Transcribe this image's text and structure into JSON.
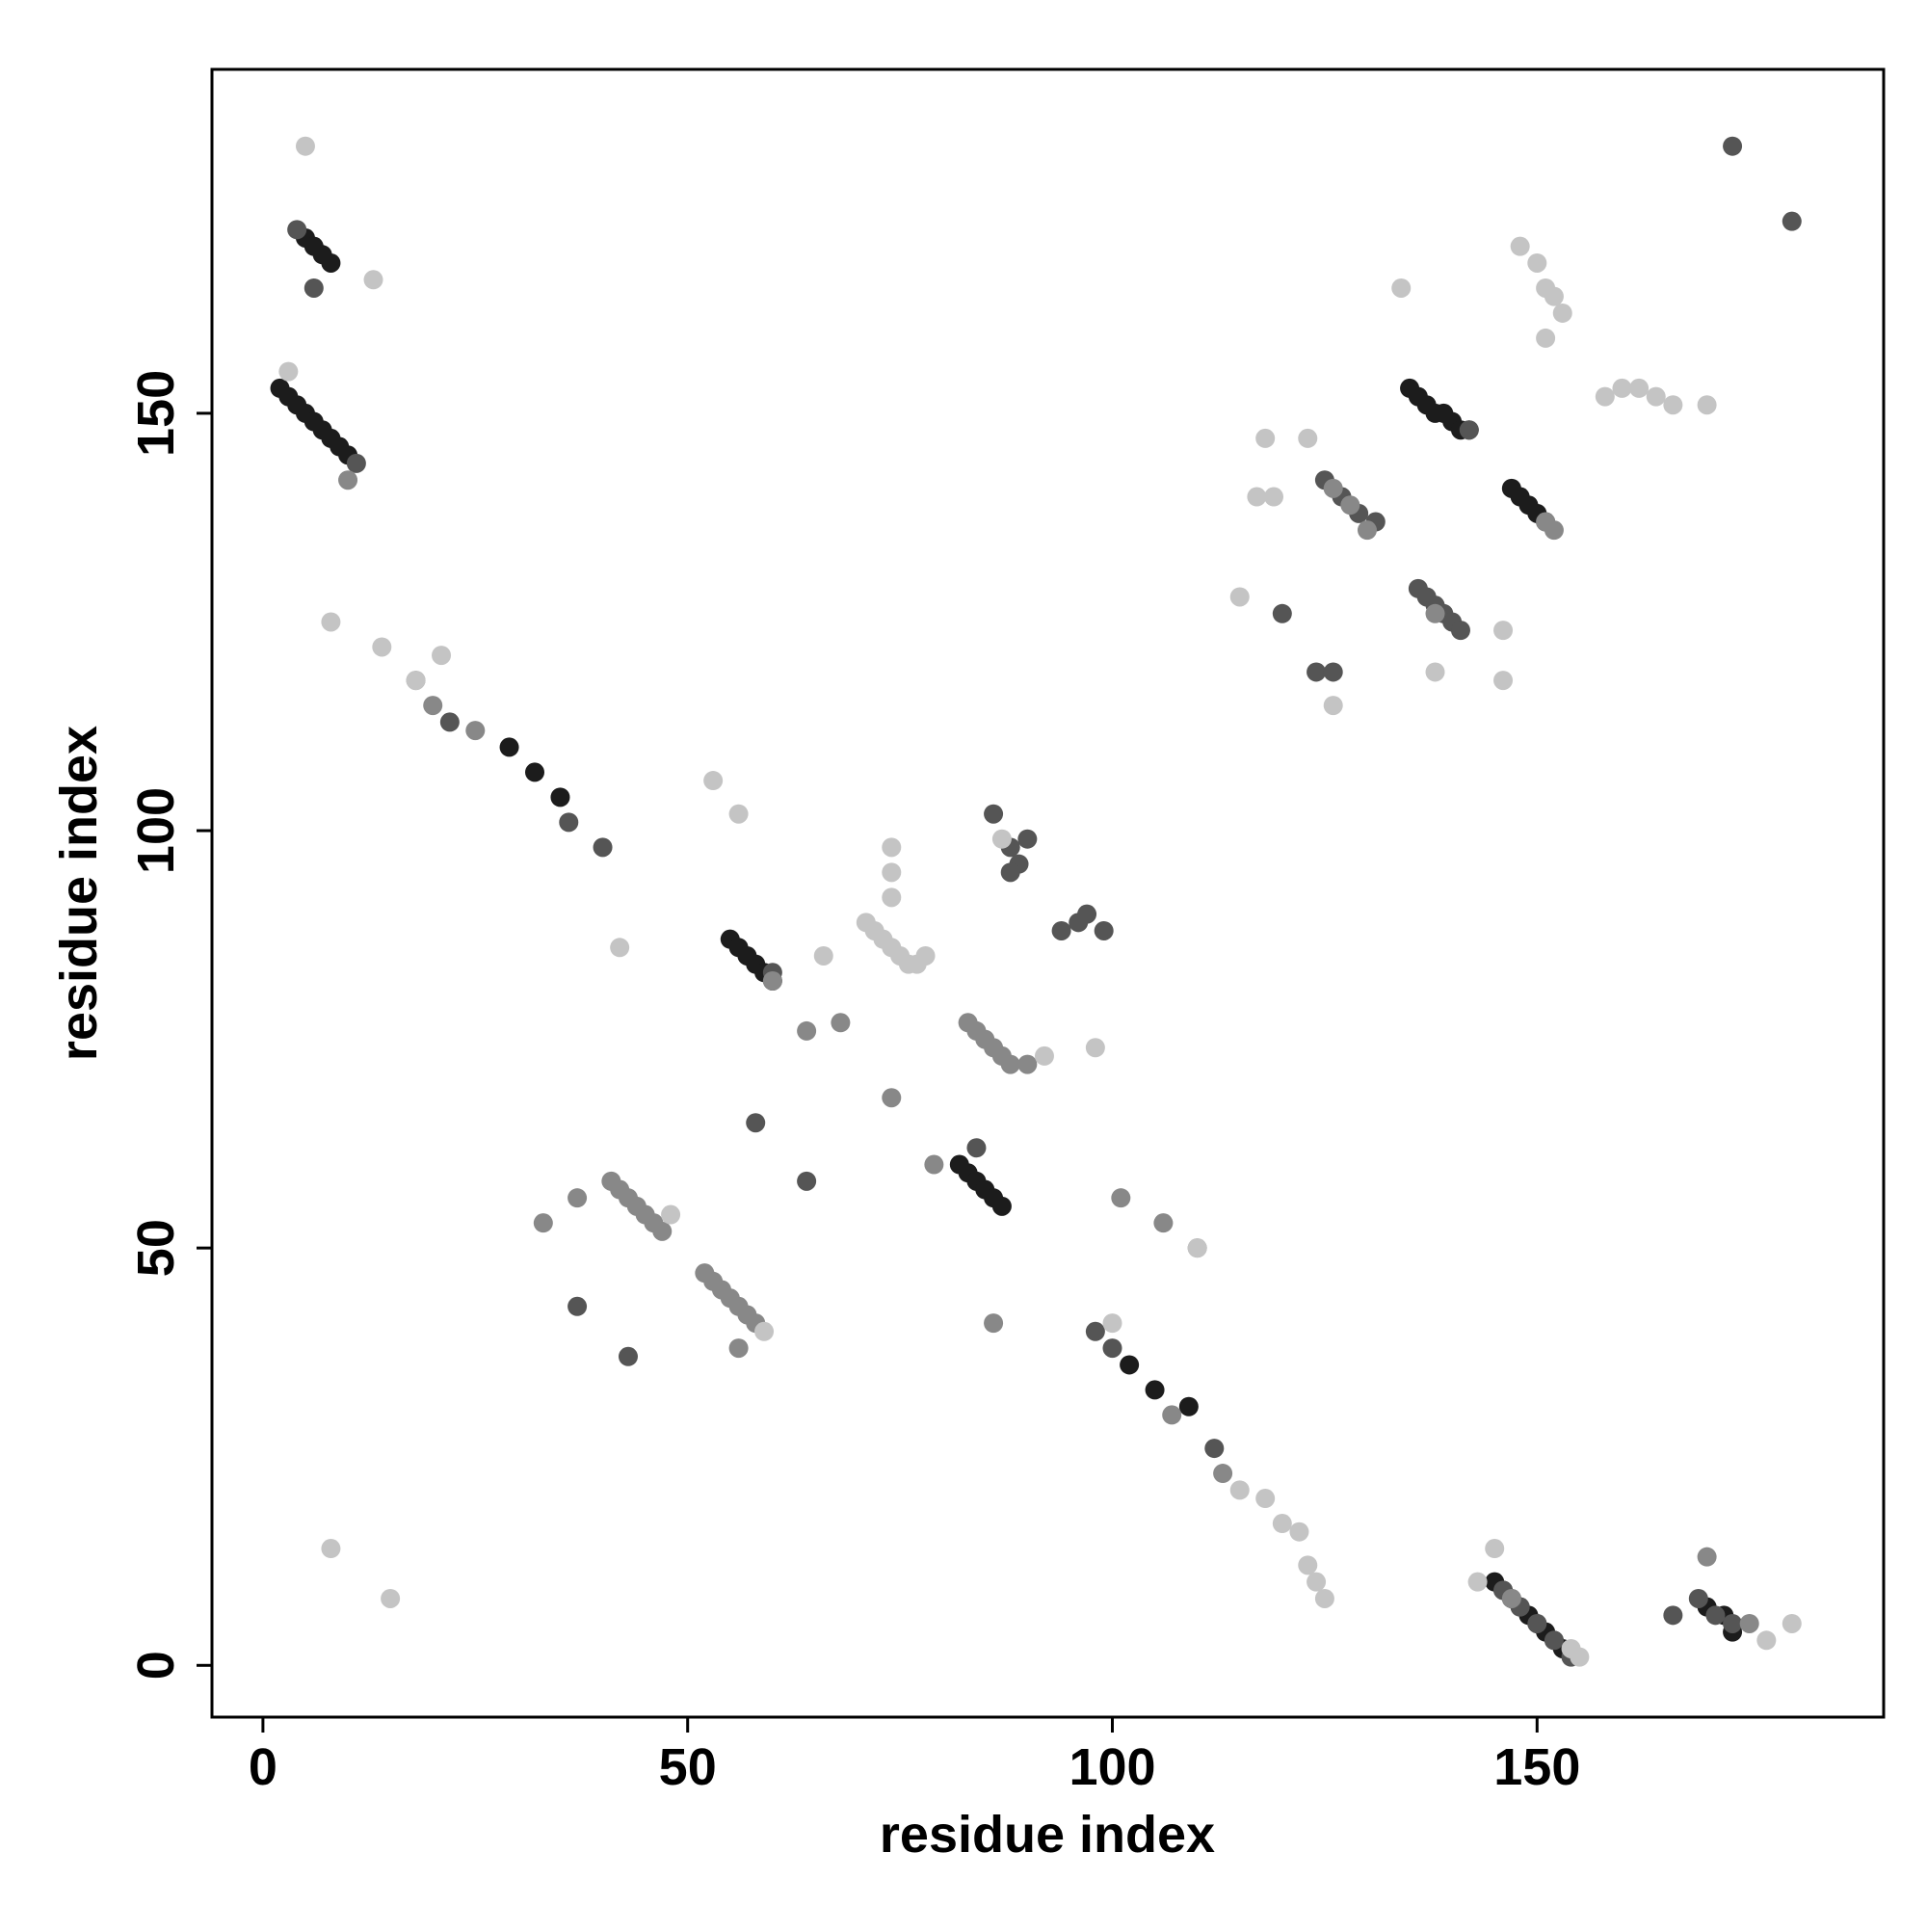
{
  "chart_data": {
    "type": "scatter",
    "xlabel": "residue index",
    "ylabel": "residue index",
    "xlim": [
      -6,
      190.8
    ],
    "ylim": [
      -6.2,
      191.2
    ],
    "xticks": [
      0,
      50,
      100,
      150
    ],
    "yticks": [
      0,
      50,
      100,
      150
    ],
    "series": [
      {
        "color": "#1c1c1c",
        "x": [
          145,
          146,
          147,
          148,
          149,
          150,
          151,
          152,
          153,
          82,
          83,
          84,
          85,
          86,
          87,
          2,
          3,
          4,
          5,
          6,
          7,
          8,
          9,
          10,
          5,
          6,
          7,
          8,
          55,
          56,
          57,
          58,
          59,
          60,
          135,
          136,
          137,
          138,
          139,
          140,
          141,
          142,
          147,
          148,
          149,
          150,
          151,
          102,
          105,
          109,
          29,
          32,
          35,
          173,
          170,
          172
        ],
        "values": [
          10,
          9,
          8,
          7,
          6,
          5,
          4,
          3,
          2,
          60,
          59,
          58,
          57,
          56,
          55,
          153,
          152,
          151,
          150,
          149,
          148,
          147,
          146,
          145,
          171,
          170,
          169,
          168,
          87,
          86,
          85,
          84,
          83,
          82,
          153,
          152,
          151,
          150,
          150,
          149,
          148,
          148,
          141,
          140,
          139,
          138,
          137,
          36,
          33,
          31,
          110,
          107,
          104,
          4,
          7,
          6
        ]
      },
      {
        "color": "#555555",
        "x": [
          146,
          148,
          150,
          152,
          154,
          169,
          171,
          173,
          166,
          136,
          137,
          138,
          139,
          140,
          141,
          125,
          127,
          129,
          131,
          86,
          88,
          89,
          90,
          94,
          96,
          97,
          99,
          173,
          180,
          120,
          124,
          64,
          58,
          43,
          37,
          36,
          40,
          22,
          4,
          6,
          11,
          98,
          100,
          112,
          84,
          88,
          60,
          126,
          142
        ],
        "values": [
          9,
          7,
          5,
          3,
          1,
          8,
          6,
          5,
          6,
          129,
          128,
          127,
          126,
          125,
          124,
          142,
          140,
          138,
          137,
          102,
          98,
          96,
          99,
          88,
          89,
          90,
          88,
          182,
          173,
          126,
          119,
          58,
          65,
          37,
          43,
          101,
          98,
          113,
          172,
          165,
          144,
          40,
          38,
          26,
          62,
          95,
          83,
          119,
          148
        ]
      },
      {
        "color": "#888888",
        "x": [
          41,
          42,
          43,
          44,
          45,
          46,
          47,
          52,
          53,
          54,
          55,
          56,
          57,
          58,
          83,
          84,
          85,
          86,
          87,
          88,
          90,
          37,
          33,
          18,
          25,
          20,
          128,
          130,
          152,
          151,
          126,
          138,
          170,
          175,
          147,
          101,
          106,
          110,
          113,
          107,
          56,
          64,
          68,
          74,
          86,
          60,
          79,
          10
        ],
        "values": [
          58,
          57,
          56,
          55,
          54,
          53,
          52,
          47,
          46,
          45,
          44,
          43,
          42,
          41,
          77,
          76,
          75,
          74,
          73,
          72,
          72,
          56,
          53,
          118,
          112,
          115,
          139,
          136,
          136,
          137,
          141,
          126,
          13,
          5,
          8,
          56,
          53,
          50,
          23,
          30,
          38,
          76,
          77,
          68,
          41,
          82,
          60,
          142
        ],
        "sizes": null
      },
      {
        "color": "#c4c4c4",
        "x": [
          71,
          72,
          73,
          74,
          75,
          76,
          77,
          78,
          74,
          74,
          148,
          150,
          151,
          152,
          153,
          151,
          158,
          160,
          162,
          164,
          166,
          170,
          118,
          123,
          117,
          119,
          115,
          126,
          134,
          146,
          146,
          138,
          8,
          15,
          8,
          14,
          18,
          21,
          42,
          48,
          59,
          115,
          118,
          120,
          122,
          123,
          124,
          125,
          155,
          154,
          177,
          180,
          3,
          5,
          13,
          53,
          56,
          87,
          92,
          98,
          100,
          110,
          145,
          143,
          66,
          74
        ],
        "values": [
          89,
          88,
          87,
          86,
          85,
          84,
          84,
          85,
          95,
          98,
          170,
          168,
          165,
          164,
          162,
          159,
          152,
          153,
          153,
          152,
          151,
          151,
          147,
          147,
          140,
          140,
          128,
          115,
          165,
          124,
          118,
          119,
          14,
          8,
          125,
          122,
          118,
          121,
          86,
          54,
          40,
          21,
          20,
          17,
          16,
          12,
          10,
          8,
          1,
          2,
          3,
          5,
          155,
          182,
          166,
          106,
          102,
          99,
          73,
          74,
          41,
          50,
          14,
          10,
          85,
          92
        ]
      }
    ]
  }
}
